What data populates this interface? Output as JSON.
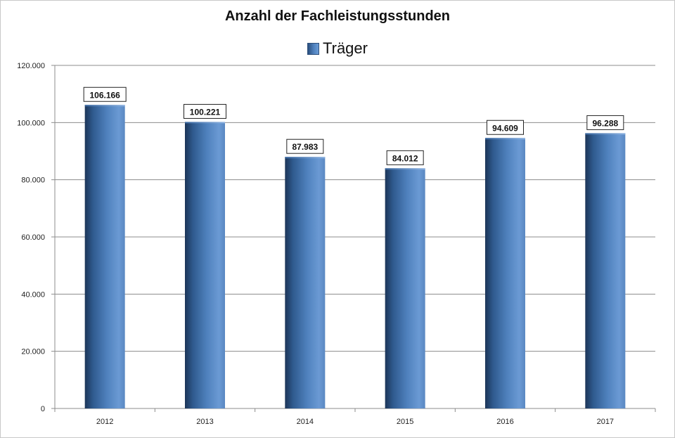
{
  "chart_data": {
    "type": "bar",
    "title": "Anzahl der Fachleistungsstunden",
    "categories": [
      "2012",
      "2013",
      "2014",
      "2015",
      "2016",
      "2017"
    ],
    "series": [
      {
        "name": "Träger",
        "values": [
          106166,
          100221,
          87983,
          84012,
          94609,
          96288
        ],
        "color": "#4f81bd"
      }
    ],
    "data_labels": [
      "106.166",
      "100.221",
      "87.983",
      "84.012",
      "94.609",
      "96.288"
    ],
    "y_ticks": [
      0,
      20000,
      40000,
      60000,
      80000,
      100000,
      120000
    ],
    "y_tick_labels": [
      "0",
      "20.000",
      "40.000",
      "60.000",
      "80.000",
      "100.000",
      "120.000"
    ],
    "ylim": [
      0,
      120000
    ],
    "xlabel": "",
    "ylabel": "",
    "grid": true,
    "legend_position": "top"
  }
}
